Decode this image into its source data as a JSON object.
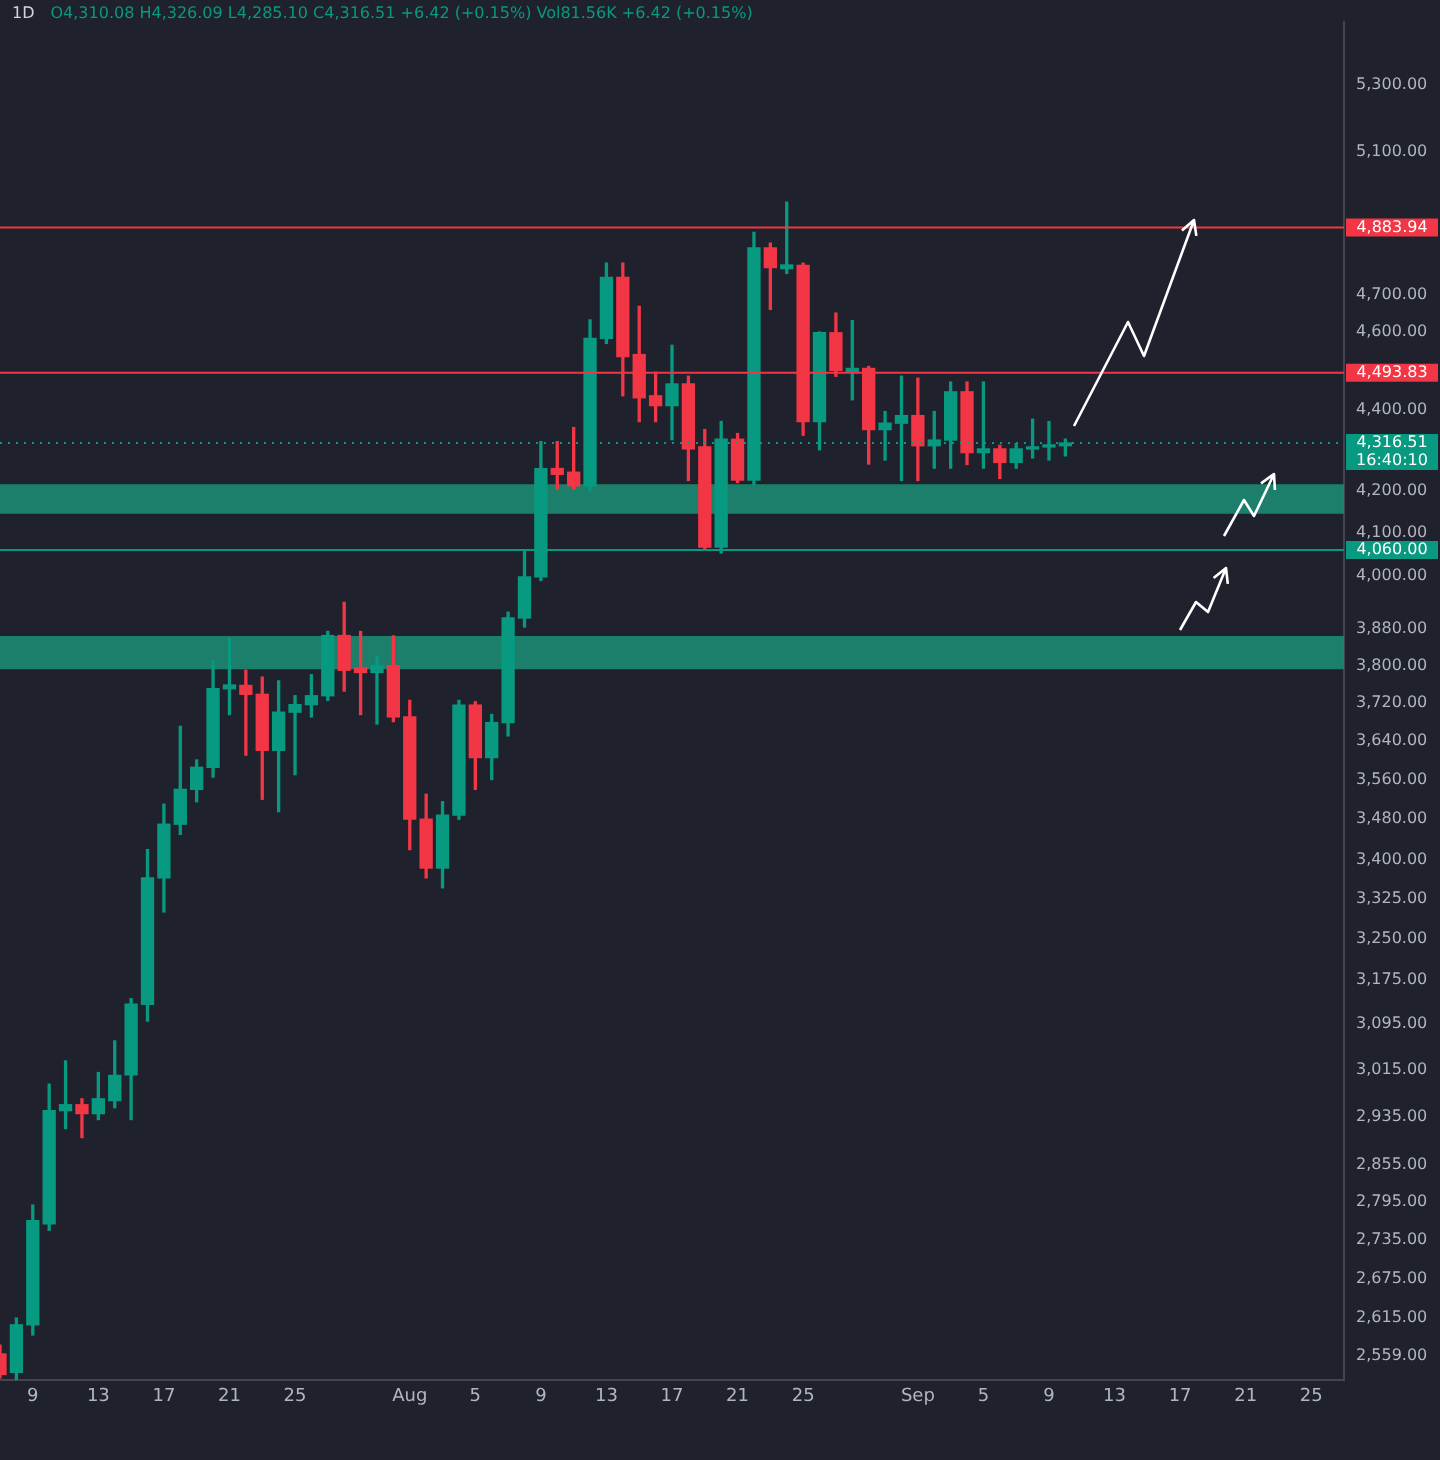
{
  "chart_data": {
    "type": "candlestick",
    "title": "1D",
    "subtitle": "O4,310.08 H4,326.09 L4,285.10 C4,316.51 +6.42 (+0.15%) Vol81.56K +6.42 (+0.15%)",
    "x": [
      "--07-07",
      "--07-08",
      "--07-09",
      "--07-10",
      "--07-11",
      "--07-12",
      "--07-13",
      "--07-14",
      "--07-15",
      "--07-16",
      "--07-17",
      "--07-18",
      "--07-19",
      "--07-20",
      "--07-21",
      "--07-22",
      "--07-23",
      "--07-24",
      "--07-25",
      "--07-26",
      "--07-27",
      "--07-28",
      "--07-29",
      "--07-30",
      "--07-31",
      "--08-01",
      "--08-02",
      "--08-03",
      "--08-04",
      "--08-05",
      "--08-06",
      "--08-07",
      "--08-08",
      "--08-09",
      "--08-10",
      "--08-11",
      "--08-12",
      "--08-13",
      "--08-14",
      "--08-15",
      "--08-16",
      "--08-17",
      "--08-18",
      "--08-19",
      "--08-20",
      "--08-21",
      "--08-22",
      "--08-23",
      "--08-24",
      "--08-25",
      "--08-26",
      "--08-27",
      "--08-28",
      "--08-29",
      "--08-30",
      "--08-31",
      "--09-01",
      "--09-02",
      "--09-03",
      "--09-04",
      "--09-05",
      "--09-06",
      "--09-07",
      "--09-08",
      "--09-09",
      "--09-10"
    ],
    "ohlc": [
      [
        2562,
        2575,
        2527,
        2532
      ],
      [
        2535,
        2615,
        2525,
        2605
      ],
      [
        2605,
        2790,
        2590,
        2765
      ],
      [
        2760,
        2990,
        2750,
        2945
      ],
      [
        2945,
        3030,
        2915,
        2955
      ],
      [
        2955,
        2965,
        2900,
        2940
      ],
      [
        2940,
        3010,
        2930,
        2965
      ],
      [
        2962,
        3065,
        2950,
        3005
      ],
      [
        3006,
        3140,
        2930,
        3130
      ],
      [
        3130,
        3420,
        3100,
        3365
      ],
      [
        3365,
        3510,
        3300,
        3470
      ],
      [
        3470,
        3670,
        3450,
        3540
      ],
      [
        3540,
        3600,
        3515,
        3585
      ],
      [
        3585,
        3810,
        3565,
        3750
      ],
      [
        3750,
        3860,
        3695,
        3758
      ],
      [
        3757,
        3790,
        3610,
        3738
      ],
      [
        3738,
        3775,
        3520,
        3620
      ],
      [
        3620,
        3767,
        3495,
        3700
      ],
      [
        3700,
        3735,
        3570,
        3716
      ],
      [
        3716,
        3780,
        3690,
        3735
      ],
      [
        3735,
        3875,
        3725,
        3866
      ],
      [
        3866,
        3940,
        3745,
        3790
      ],
      [
        3795,
        3875,
        3695,
        3785
      ],
      [
        3785,
        3820,
        3675,
        3800
      ],
      [
        3800,
        3865,
        3680,
        3690
      ],
      [
        3690,
        3725,
        3420,
        3480
      ],
      [
        3480,
        3530,
        3365,
        3384
      ],
      [
        3384,
        3515,
        3346,
        3488
      ],
      [
        3488,
        3725,
        3480,
        3715
      ],
      [
        3715,
        3722,
        3540,
        3605
      ],
      [
        3605,
        3695,
        3560,
        3678
      ],
      [
        3678,
        3918,
        3650,
        3905
      ],
      [
        3905,
        4060,
        3885,
        3998
      ],
      [
        3998,
        4320,
        3990,
        4254
      ],
      [
        4254,
        4320,
        4205,
        4240
      ],
      [
        4245,
        4355,
        4205,
        4212
      ],
      [
        4212,
        4632,
        4200,
        4583
      ],
      [
        4583,
        4785,
        4570,
        4746
      ],
      [
        4746,
        4785,
        4435,
        4536
      ],
      [
        4541,
        4668,
        4370,
        4430
      ],
      [
        4435,
        4495,
        4370,
        4410
      ],
      [
        4410,
        4565,
        4325,
        4465
      ],
      [
        4465,
        4485,
        4225,
        4302
      ],
      [
        4307,
        4350,
        4060,
        4067
      ],
      [
        4067,
        4370,
        4053,
        4326
      ],
      [
        4326,
        4340,
        4220,
        4226
      ],
      [
        4226,
        4870,
        4215,
        4827
      ],
      [
        4827,
        4840,
        4660,
        4773
      ],
      [
        4770,
        4955,
        4757,
        4780
      ],
      [
        4779,
        4785,
        4336,
        4370
      ],
      [
        4370,
        4600,
        4300,
        4598
      ],
      [
        4598,
        4650,
        4485,
        4500
      ],
      [
        4495,
        4630,
        4425,
        4505
      ],
      [
        4505,
        4510,
        4265,
        4350
      ],
      [
        4350,
        4395,
        4275,
        4366
      ],
      [
        4366,
        4485,
        4225,
        4385
      ],
      [
        4385,
        4480,
        4225,
        4310
      ],
      [
        4310,
        4395,
        4255,
        4324
      ],
      [
        4324,
        4470,
        4255,
        4445
      ],
      [
        4445,
        4470,
        4264,
        4293
      ],
      [
        4293,
        4470,
        4255,
        4302
      ],
      [
        4302,
        4311,
        4230,
        4269
      ],
      [
        4269,
        4315,
        4255,
        4302
      ],
      [
        4302,
        4376,
        4280,
        4307
      ],
      [
        4307,
        4370,
        4275,
        4311
      ],
      [
        4310.08,
        4326.09,
        4285.1,
        4316.51
      ]
    ],
    "xlim": [
      "--07-07",
      "--09-27"
    ],
    "xticks": [
      {
        "value": "--07-09",
        "label": "9"
      },
      {
        "value": "--07-13",
        "label": "13"
      },
      {
        "value": "--07-17",
        "label": "17"
      },
      {
        "value": "--07-21",
        "label": "21"
      },
      {
        "value": "--07-25",
        "label": "25"
      },
      {
        "value": "--08-01",
        "label": "Aug"
      },
      {
        "value": "--08-05",
        "label": "5"
      },
      {
        "value": "--08-09",
        "label": "9"
      },
      {
        "value": "--08-13",
        "label": "13"
      },
      {
        "value": "--08-17",
        "label": "17"
      },
      {
        "value": "--08-21",
        "label": "21"
      },
      {
        "value": "--08-25",
        "label": "25"
      },
      {
        "value": "--09-01",
        "label": "Sep"
      },
      {
        "value": "--09-05",
        "label": "5"
      },
      {
        "value": "--09-09",
        "label": "9"
      },
      {
        "value": "--09-13",
        "label": "13"
      },
      {
        "value": "--09-17",
        "label": "17"
      },
      {
        "value": "--09-21",
        "label": "21"
      },
      {
        "value": "--09-25",
        "label": "25"
      }
    ],
    "ylim": [
      2524,
      5495
    ],
    "log": true,
    "yticks": [
      {
        "value": 5300,
        "label": "5,300.00"
      },
      {
        "value": 5100,
        "label": "5,100.00"
      },
      {
        "value": 4700,
        "label": "4,700.00"
      },
      {
        "value": 4600,
        "label": "4,600.00"
      },
      {
        "value": 4400,
        "label": "4,400.00"
      },
      {
        "value": 4200,
        "label": "4,200.00"
      },
      {
        "value": 4100,
        "label": "4,100.00"
      },
      {
        "value": 4000,
        "label": "4,000.00"
      },
      {
        "value": 3880,
        "label": "3,880.00"
      },
      {
        "value": 3800,
        "label": "3,800.00"
      },
      {
        "value": 3720,
        "label": "3,720.00"
      },
      {
        "value": 3640,
        "label": "3,640.00"
      },
      {
        "value": 3560,
        "label": "3,560.00"
      },
      {
        "value": 3480,
        "label": "3,480.00"
      },
      {
        "value": 3400,
        "label": "3,400.00"
      },
      {
        "value": 3325,
        "label": "3,325.00"
      },
      {
        "value": 3250,
        "label": "3,250.00"
      },
      {
        "value": 3175,
        "label": "3,175.00"
      },
      {
        "value": 3095,
        "label": "3,095.00"
      },
      {
        "value": 3015,
        "label": "3,015.00"
      },
      {
        "value": 2935,
        "label": "2,935.00"
      },
      {
        "value": 2855,
        "label": "2,855.00"
      },
      {
        "value": 2795,
        "label": "2,795.00"
      },
      {
        "value": 2735,
        "label": "2,735.00"
      },
      {
        "value": 2675,
        "label": "2,675.00"
      },
      {
        "value": 2615,
        "label": "2,615.00"
      },
      {
        "value": 2559,
        "label": "2,559.00"
      }
    ],
    "ref_lines": [
      {
        "axis": "y",
        "value": 4883.94,
        "label": "4,883.94",
        "color": "#f23645"
      },
      {
        "axis": "y",
        "value": 4493.83,
        "label": "4,493.83",
        "color": "#f23645"
      },
      {
        "axis": "y",
        "value": 4316.51,
        "label": "4,316.51",
        "color": "#089981",
        "line_style": "dotted"
      },
      {
        "axis": "y",
        "value": 4060,
        "label": "4,060.00",
        "color": "#089981"
      }
    ],
    "bands": [
      {
        "axis": "y",
        "from": 4145,
        "to": 4216,
        "color": "#1b8a72"
      },
      {
        "axis": "y",
        "from": 3792,
        "to": 3865,
        "color": "#1b8a72"
      }
    ],
    "annotations": [
      "16:40:10"
    ]
  }
}
